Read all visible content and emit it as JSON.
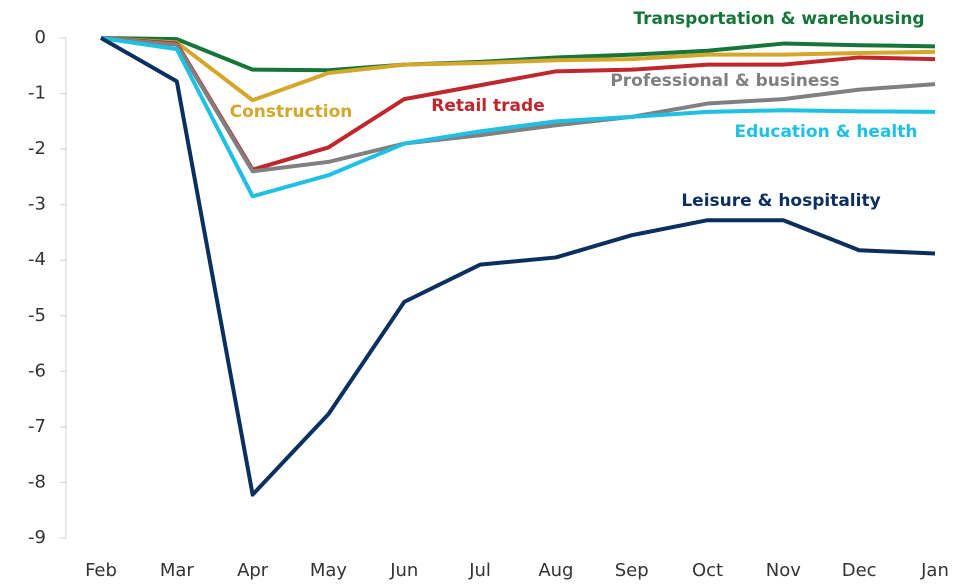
{
  "chart_data": {
    "type": "line",
    "categories": [
      "Feb",
      "Mar",
      "Apr",
      "May",
      "Jun",
      "Jul",
      "Aug",
      "Sep",
      "Oct",
      "Nov",
      "Dec",
      "Jan"
    ],
    "series": [
      {
        "name": "Transportation & warehousing",
        "color": "#16763a",
        "values": [
          0,
          -0.02,
          -0.57,
          -0.58,
          -0.48,
          -0.43,
          -0.35,
          -0.3,
          -0.23,
          -0.1,
          -0.13,
          -0.15
        ]
      },
      {
        "name": "Construction",
        "color": "#d4a62a",
        "values": [
          0,
          -0.08,
          -1.12,
          -0.63,
          -0.48,
          -0.45,
          -0.4,
          -0.38,
          -0.3,
          -0.3,
          -0.27,
          -0.25
        ]
      },
      {
        "name": "Retail trade",
        "color": "#c0272d",
        "values": [
          0,
          -0.1,
          -2.37,
          -1.97,
          -1.1,
          -0.85,
          -0.6,
          -0.57,
          -0.48,
          -0.48,
          -0.35,
          -0.38
        ]
      },
      {
        "name": "Professional & business",
        "color": "#808080",
        "values": [
          0,
          -0.12,
          -2.4,
          -2.23,
          -1.9,
          -1.75,
          -1.57,
          -1.42,
          -1.18,
          -1.1,
          -0.93,
          -0.83
        ]
      },
      {
        "name": "Education & health",
        "color": "#1ec0e4",
        "values": [
          0,
          -0.2,
          -2.85,
          -2.47,
          -1.9,
          -1.68,
          -1.5,
          -1.42,
          -1.33,
          -1.3,
          -1.32,
          -1.33
        ]
      },
      {
        "name": "Leisure & hospitality",
        "color": "#0b2f5e",
        "values": [
          0,
          -0.78,
          -8.22,
          -6.77,
          -4.75,
          -4.08,
          -3.95,
          -3.55,
          -3.28,
          -3.28,
          -3.82,
          -3.88
        ]
      }
    ],
    "ylim": [
      -9,
      0
    ],
    "yticks": [
      0,
      -1,
      -2,
      -3,
      -4,
      -5,
      -6,
      -7,
      -8,
      -9
    ]
  }
}
